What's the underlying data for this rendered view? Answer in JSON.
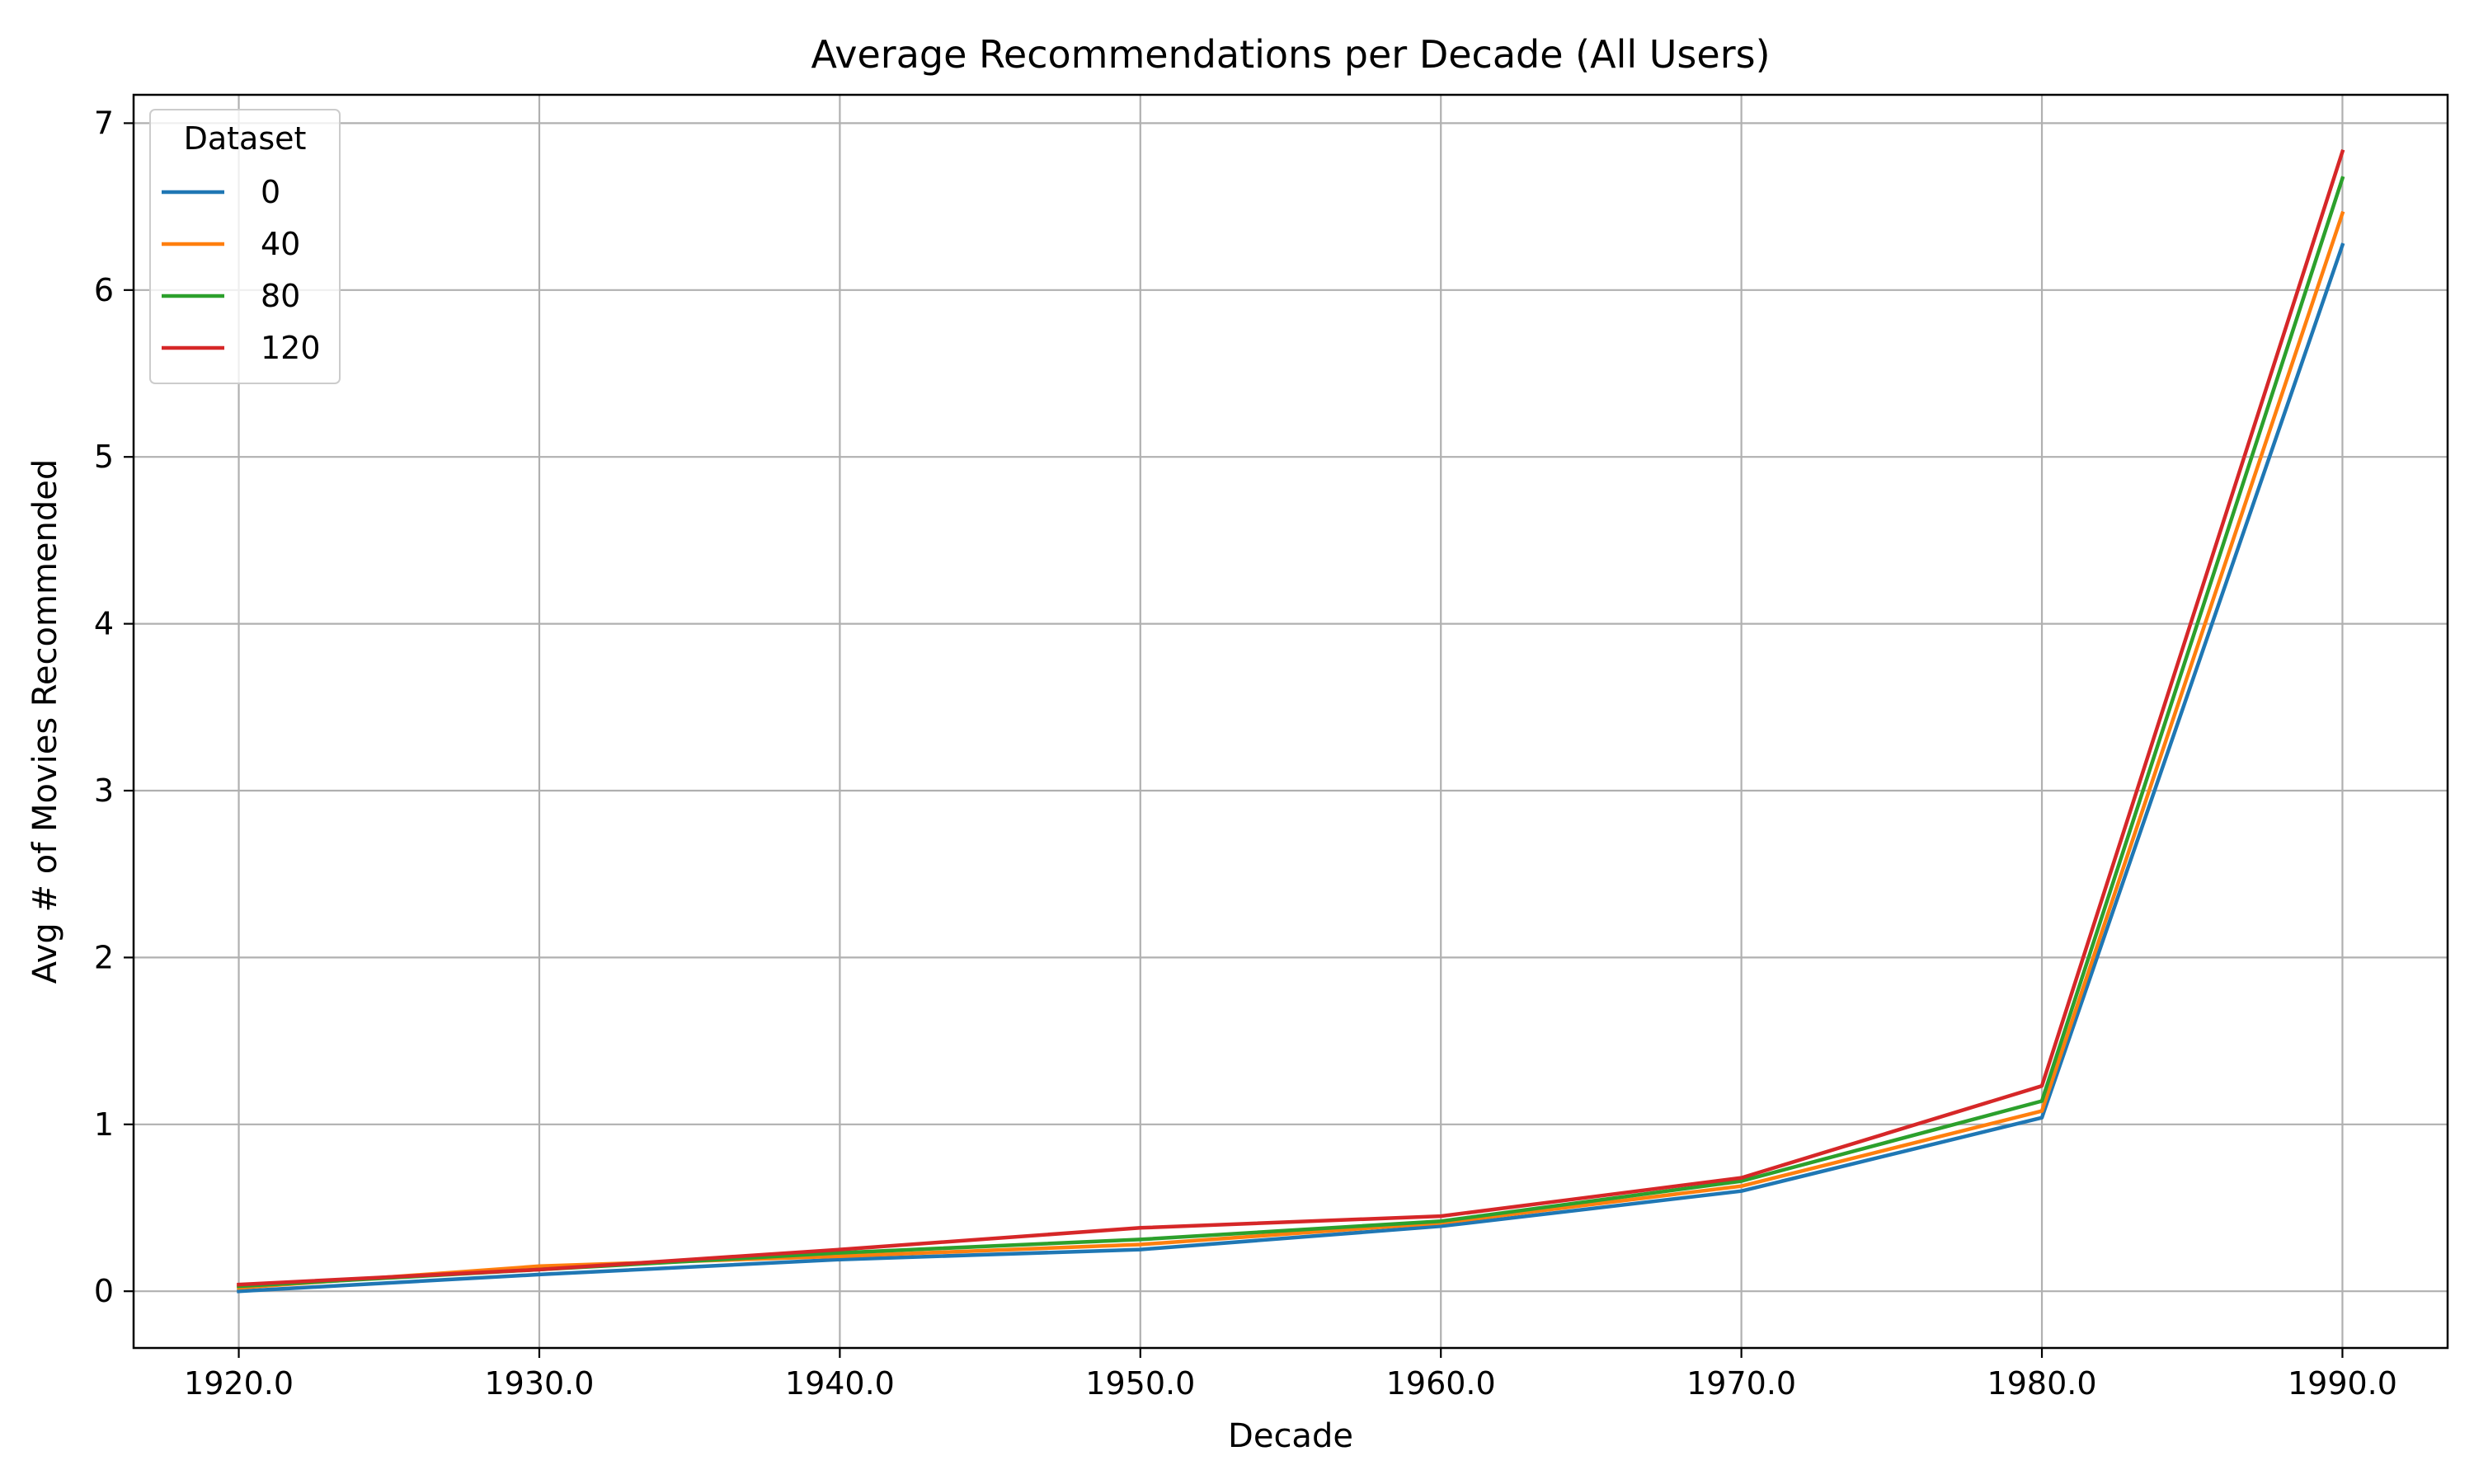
{
  "chart_data": {
    "type": "line",
    "title": "Average Recommendations per Decade (All Users)",
    "xlabel": "Decade",
    "ylabel": "Avg # of Movies Recommended",
    "x": [
      1920,
      1930,
      1940,
      1950,
      1960,
      1970,
      1980,
      1990
    ],
    "x_tick_labels": [
      "1920.0",
      "1930.0",
      "1940.0",
      "1950.0",
      "1960.0",
      "1970.0",
      "1980.0",
      "1990.0"
    ],
    "y_ticks": [
      0,
      1,
      2,
      3,
      4,
      5,
      6,
      7
    ],
    "y_tick_labels": [
      "0",
      "1",
      "2",
      "3",
      "4",
      "5",
      "6",
      "7"
    ],
    "xlim": [
      1916.5,
      1993.5
    ],
    "ylim": [
      -0.34,
      7.17
    ],
    "grid": true,
    "legend": {
      "title": "Dataset",
      "placement": "top-left"
    },
    "series": [
      {
        "name": "0",
        "color": "#1f77b4",
        "values": [
          0.0,
          0.1,
          0.19,
          0.25,
          0.39,
          0.6,
          1.04,
          6.27
        ]
      },
      {
        "name": "40",
        "color": "#ff7f0e",
        "values": [
          0.02,
          0.15,
          0.21,
          0.28,
          0.41,
          0.63,
          1.08,
          6.46
        ]
      },
      {
        "name": "80",
        "color": "#2ca02c",
        "values": [
          0.03,
          0.13,
          0.23,
          0.31,
          0.42,
          0.66,
          1.14,
          6.67
        ]
      },
      {
        "name": "120",
        "color": "#d62728",
        "values": [
          0.04,
          0.13,
          0.25,
          0.38,
          0.45,
          0.68,
          1.23,
          6.83
        ]
      }
    ]
  }
}
